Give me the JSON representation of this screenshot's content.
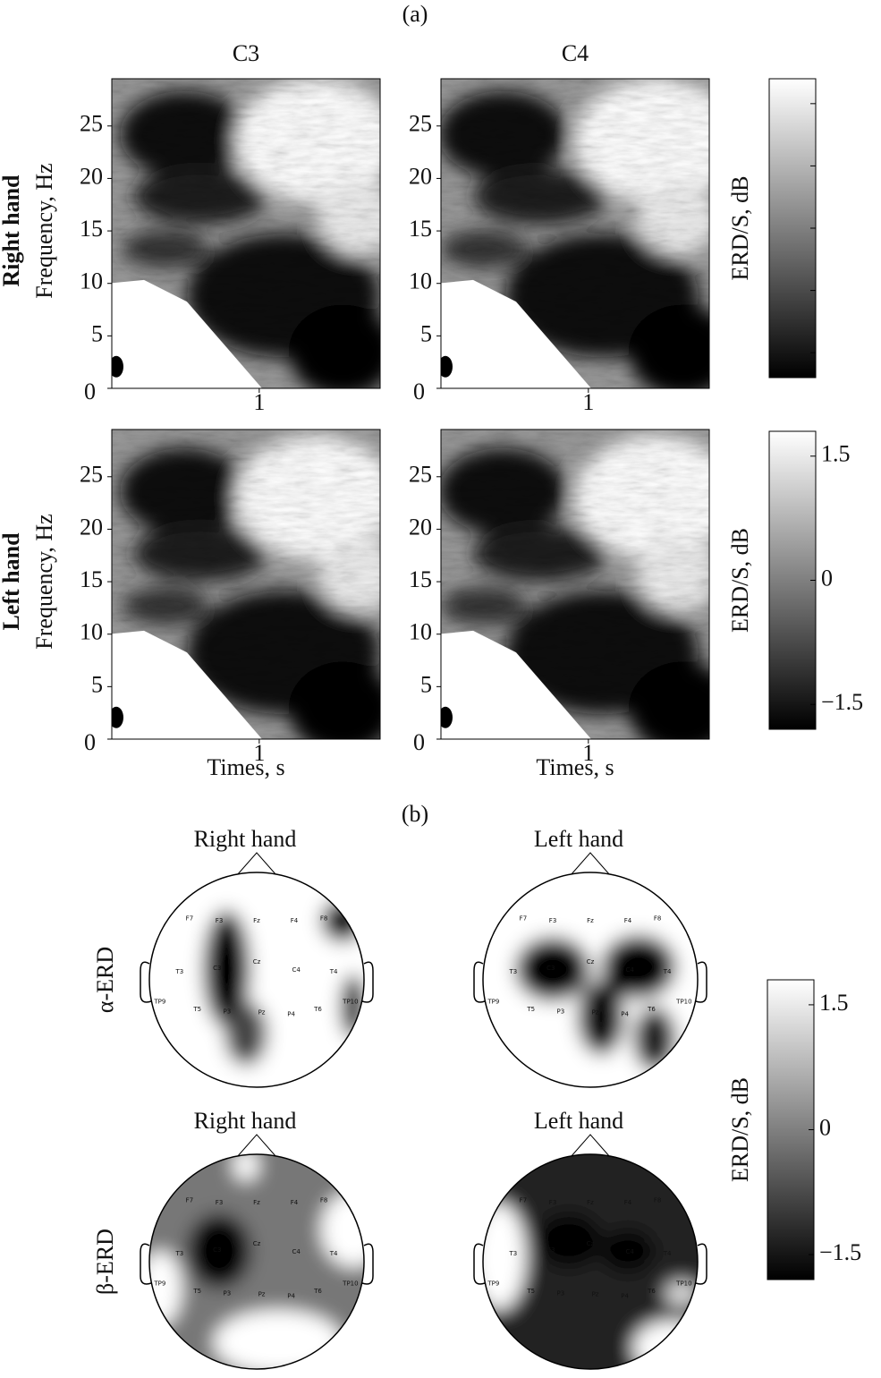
{
  "panel_a": {
    "label": "(a)",
    "columns": [
      "C3",
      "C4"
    ],
    "rows": [
      "Right hand",
      "Left hand"
    ],
    "y_label": "Frequency, Hz",
    "x_label": "Times, s",
    "ylim": [
      0,
      29.5
    ],
    "yticks": [
      0,
      5,
      10,
      15,
      20,
      25
    ],
    "xlim": [
      0,
      1.82
    ],
    "xticks": [
      1
    ]
  },
  "panel_b": {
    "label": "(b)",
    "columns": [
      "Right hand",
      "Left hand"
    ],
    "rows": [
      "α-ERD",
      "β-ERD"
    ],
    "electrodes": [
      "F7",
      "F3",
      "Fz",
      "F4",
      "F8",
      "T3",
      "C3",
      "Cz",
      "C4",
      "T4",
      "TP9",
      "T5",
      "P3",
      "Pz",
      "P4",
      "T6",
      "TP10"
    ]
  },
  "colorbar": {
    "label": "ERD/S, dB",
    "lim": [
      -1.8,
      1.8
    ],
    "ticks": [
      1.5,
      0,
      {
        "value": -1.5,
        "label": "−1.5"
      }
    ]
  }
}
